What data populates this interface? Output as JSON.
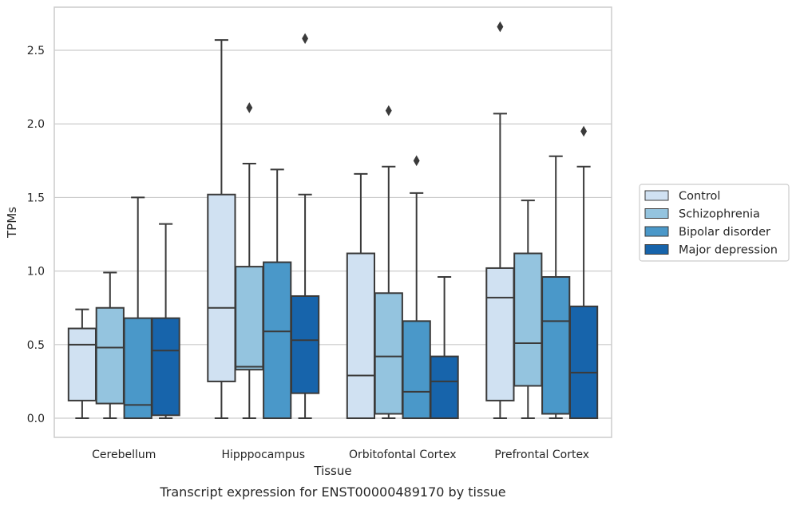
{
  "caption": "Transcript expression for ENST00000489170 by tissue",
  "chart_data": {
    "type": "box",
    "title": "",
    "xlabel": "Tissue",
    "ylabel": "TPMs",
    "ylim": [
      -0.13,
      2.793
    ],
    "yticks": [
      "0.0",
      "0.5",
      "1.0",
      "1.5",
      "2.0",
      "2.5"
    ],
    "ytick_values": [
      0,
      0.5,
      1.0,
      1.5,
      2.0,
      2.5
    ],
    "grid": "horizontal",
    "legend_position": "right",
    "colors": {
      "Control": "#d0e1f2",
      "Schizophrenia": "#94c4df",
      "Bipolar disorder": "#4a98c9",
      "Major depression": "#1764ab",
      "edge": "#3a3a3a",
      "grid": "#cccccc",
      "frame": "#cccccc"
    },
    "categories": [
      "Cerebellum",
      "Hipppocampus",
      "Orbitofontal Cortex",
      "Prefrontal Cortex"
    ],
    "series": [
      {
        "name": "Control",
        "boxes": [
          {
            "whislo": 0.0,
            "q1": 0.12,
            "med": 0.5,
            "q3": 0.61,
            "whishi": 0.74,
            "fliers": []
          },
          {
            "whislo": 0.0,
            "q1": 0.25,
            "med": 0.75,
            "q3": 1.52,
            "whishi": 2.57,
            "fliers": []
          },
          {
            "whislo": 0.0,
            "q1": 0.0,
            "med": 0.29,
            "q3": 1.12,
            "whishi": 1.66,
            "fliers": []
          },
          {
            "whislo": 0.0,
            "q1": 0.12,
            "med": 0.82,
            "q3": 1.02,
            "whishi": 2.07,
            "fliers": [
              2.66
            ]
          }
        ]
      },
      {
        "name": "Schizophrenia",
        "boxes": [
          {
            "whislo": 0.0,
            "q1": 0.1,
            "med": 0.48,
            "q3": 0.75,
            "whishi": 0.99,
            "fliers": []
          },
          {
            "whislo": 0.0,
            "q1": 0.33,
            "med": 0.35,
            "q3": 1.03,
            "whishi": 1.73,
            "fliers": [
              2.11
            ]
          },
          {
            "whislo": 0.0,
            "q1": 0.03,
            "med": 0.42,
            "q3": 0.85,
            "whishi": 1.71,
            "fliers": [
              2.09
            ]
          },
          {
            "whislo": 0.0,
            "q1": 0.22,
            "med": 0.51,
            "q3": 1.12,
            "whishi": 1.48,
            "fliers": []
          }
        ]
      },
      {
        "name": "Bipolar disorder",
        "boxes": [
          {
            "whislo": 0.0,
            "q1": 0.0,
            "med": 0.09,
            "q3": 0.68,
            "whishi": 1.5,
            "fliers": []
          },
          {
            "whislo": 0.0,
            "q1": 0.0,
            "med": 0.59,
            "q3": 1.06,
            "whishi": 1.69,
            "fliers": []
          },
          {
            "whislo": 0.0,
            "q1": 0.0,
            "med": 0.18,
            "q3": 0.66,
            "whishi": 1.53,
            "fliers": [
              1.75
            ]
          },
          {
            "whislo": 0.0,
            "q1": 0.03,
            "med": 0.66,
            "q3": 0.96,
            "whishi": 1.78,
            "fliers": []
          }
        ]
      },
      {
        "name": "Major depression",
        "boxes": [
          {
            "whislo": 0.0,
            "q1": 0.02,
            "med": 0.46,
            "q3": 0.68,
            "whishi": 1.32,
            "fliers": []
          },
          {
            "whislo": 0.0,
            "q1": 0.17,
            "med": 0.53,
            "q3": 0.83,
            "whishi": 1.52,
            "fliers": [
              2.58
            ]
          },
          {
            "whislo": 0.0,
            "q1": 0.0,
            "med": 0.25,
            "q3": 0.42,
            "whishi": 0.96,
            "fliers": []
          },
          {
            "whislo": 0.0,
            "q1": 0.0,
            "med": 0.31,
            "q3": 0.76,
            "whishi": 1.71,
            "fliers": [
              1.95
            ]
          }
        ]
      }
    ]
  }
}
